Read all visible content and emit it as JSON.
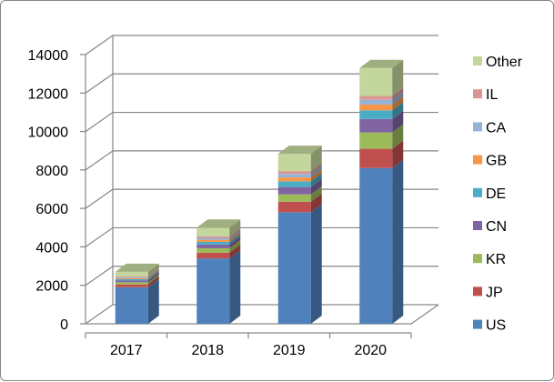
{
  "chart_data": {
    "type": "bar",
    "stacked": true,
    "three_d": true,
    "categories": [
      "2017",
      "2018",
      "2019",
      "2020"
    ],
    "ylim": [
      0,
      14000
    ],
    "yticks": [
      0,
      2000,
      4000,
      6000,
      8000,
      10000,
      12000,
      14000
    ],
    "grid": true,
    "legend_position": "right",
    "series": [
      {
        "name": "US",
        "color": "#4F81BD",
        "values": [
          1900,
          3400,
          5800,
          8100
        ]
      },
      {
        "name": "JP",
        "color": "#C0504D",
        "values": [
          150,
          300,
          550,
          1000
        ]
      },
      {
        "name": "KR",
        "color": "#9BBB59",
        "values": [
          110,
          230,
          380,
          850
        ]
      },
      {
        "name": "CN",
        "color": "#8064A2",
        "values": [
          90,
          190,
          380,
          700
        ]
      },
      {
        "name": "DE",
        "color": "#4BACC6",
        "values": [
          70,
          140,
          300,
          450
        ]
      },
      {
        "name": "GB",
        "color": "#F79646",
        "values": [
          50,
          110,
          200,
          300
        ]
      },
      {
        "name": "CA",
        "color": "#95B3D7",
        "values": [
          50,
          100,
          180,
          250
        ]
      },
      {
        "name": "IL",
        "color": "#D99694",
        "values": [
          40,
          80,
          150,
          200
        ]
      },
      {
        "name": "Other",
        "color": "#C3D69B",
        "values": [
          240,
          450,
          900,
          1450
        ]
      }
    ]
  }
}
